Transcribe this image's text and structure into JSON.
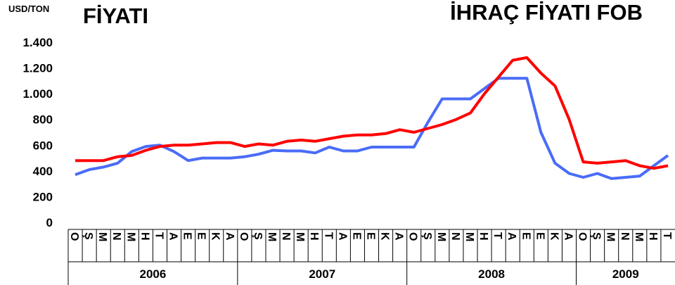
{
  "chart_data": {
    "type": "line",
    "ylabel": "USD/TON",
    "categories": [
      "O",
      "Ş",
      "M",
      "N",
      "M",
      "H",
      "T",
      "A",
      "E",
      "E",
      "K",
      "A",
      "O",
      "Ş",
      "M",
      "N",
      "M",
      "H",
      "T",
      "A",
      "E",
      "E",
      "K",
      "A",
      "O",
      "Ş",
      "M",
      "N",
      "M",
      "H",
      "T",
      "A",
      "E",
      "E",
      "K",
      "A",
      "O",
      "Ş",
      "M",
      "N",
      "M",
      "H",
      "T"
    ],
    "years": [
      "2006",
      "2007",
      "2008",
      "2009"
    ],
    "series": [
      {
        "name": "FİYATI",
        "color": "#ff0000",
        "values": [
          480,
          480,
          480,
          510,
          520,
          560,
          590,
          600,
          600,
          610,
          620,
          620,
          590,
          610,
          600,
          630,
          640,
          630,
          650,
          670,
          680,
          680,
          690,
          720,
          700,
          730,
          760,
          800,
          850,
          1000,
          1130,
          1260,
          1280,
          1160,
          1060,
          800,
          470,
          460,
          470,
          480,
          440,
          420,
          440
        ]
      },
      {
        "name": "İHRAÇ FİYATI FOB",
        "color": "#4a6cf7",
        "values": [
          370,
          410,
          430,
          460,
          550,
          590,
          600,
          550,
          480,
          500,
          500,
          500,
          510,
          530,
          560,
          555,
          555,
          540,
          585,
          555,
          555,
          585,
          585,
          585,
          585,
          780,
          960,
          960,
          960,
          1040,
          1120,
          1120,
          1120,
          700,
          460,
          380,
          350,
          380,
          340,
          350,
          360,
          440,
          520
        ]
      }
    ],
    "ylim": [
      0,
      1400
    ],
    "yticks": [
      0,
      200,
      400,
      600,
      800,
      {
        "value": 1000,
        "label": "1.000"
      },
      {
        "value": 1200,
        "label": "1.200"
      },
      {
        "value": 1400,
        "label": "1.400"
      }
    ],
    "grid": false
  }
}
